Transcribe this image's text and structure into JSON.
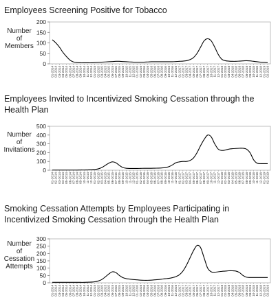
{
  "chart_data": [
    {
      "type": "line",
      "title": "Employees Screening Positive for Tobacco",
      "ylabel_lines": [
        "Number",
        "of",
        "Members"
      ],
      "ylim": [
        0,
        200
      ],
      "yticks": [
        0,
        50,
        100,
        150,
        200
      ],
      "x": [
        "01-2014",
        "02-2014",
        "03-2014",
        "04-2014",
        "05-2014",
        "06-2014",
        "07-2014",
        "08-2014",
        "09-2014",
        "10-2014",
        "11-2014",
        "12-2014",
        "01-2015",
        "02-2015",
        "03-2015",
        "04-2015",
        "05-2015",
        "06-2015",
        "07-2015",
        "08-2015",
        "09-2015",
        "10-2015",
        "11-2015",
        "12-2015",
        "01-2016",
        "02-2016",
        "03-2016",
        "04-2016",
        "05-2016",
        "06-2016",
        "07-2016",
        "08-2016",
        "09-2016",
        "10-2016",
        "11-2016",
        "12-2016",
        "01-2017",
        "02-2017",
        "03-2017",
        "04-2017",
        "05-2017",
        "06-2017",
        "07-2017",
        "08-2017",
        "09-2017",
        "10-2017",
        "11-2017",
        "12-2017",
        "01-2018",
        "02-2018",
        "03-2018",
        "04-2018",
        "05-2018",
        "06-2018",
        "07-2018",
        "08-2018",
        "09-2018",
        "10-2018",
        "11-2018",
        "12-2018",
        "01-2019",
        "02-2019"
      ],
      "series": [
        {
          "values": [
            115,
            100,
            80,
            55,
            35,
            18,
            9,
            6,
            5,
            5,
            5,
            5,
            6,
            7,
            8,
            9,
            10,
            11,
            12,
            12,
            11,
            10,
            9,
            8,
            8,
            8,
            8,
            9,
            10,
            10,
            10,
            10,
            10,
            10,
            10,
            11,
            12,
            13,
            15,
            20,
            30,
            50,
            80,
            110,
            120,
            110,
            80,
            45,
            22,
            15,
            13,
            12,
            12,
            13,
            14,
            15,
            14,
            12,
            10,
            8,
            7,
            6
          ]
        }
      ]
    },
    {
      "type": "line",
      "title": "Employees Invited to Incentivized Smoking Cessation through the Health Plan",
      "ylabel_lines": [
        "Number",
        "of",
        "Invitations"
      ],
      "ylim": [
        0,
        500
      ],
      "yticks": [
        0,
        100,
        200,
        300,
        400,
        500
      ],
      "x": [
        "01-2014",
        "02-2014",
        "03-2014",
        "04-2014",
        "05-2014",
        "06-2014",
        "07-2014",
        "08-2014",
        "09-2014",
        "10-2014",
        "11-2014",
        "12-2014",
        "01-2015",
        "02-2015",
        "03-2015",
        "04-2015",
        "05-2015",
        "06-2015",
        "07-2015",
        "08-2015",
        "09-2015",
        "10-2015",
        "11-2015",
        "12-2015",
        "01-2016",
        "02-2016",
        "03-2016",
        "04-2016",
        "05-2016",
        "06-2016",
        "07-2016",
        "08-2016",
        "09-2016",
        "10-2016",
        "11-2016",
        "12-2016",
        "01-2017",
        "02-2017",
        "03-2017",
        "04-2017",
        "05-2017",
        "06-2017",
        "07-2017",
        "08-2017",
        "09-2017",
        "10-2017",
        "11-2017",
        "12-2017",
        "01-2018",
        "02-2018",
        "03-2018",
        "04-2018",
        "05-2018",
        "06-2018",
        "07-2018",
        "08-2018",
        "09-2018",
        "10-2018",
        "11-2018",
        "12-2018",
        "01-2019",
        "02-2019"
      ],
      "series": [
        {
          "values": [
            2,
            2,
            2,
            2,
            2,
            2,
            2,
            2,
            3,
            3,
            4,
            5,
            8,
            15,
            30,
            55,
            80,
            95,
            85,
            55,
            30,
            22,
            20,
            20,
            20,
            21,
            22,
            22,
            22,
            23,
            24,
            26,
            30,
            40,
            60,
            85,
            95,
            100,
            100,
            110,
            140,
            200,
            280,
            350,
            400,
            380,
            300,
            240,
            225,
            230,
            240,
            245,
            248,
            250,
            250,
            240,
            200,
            120,
            80,
            75,
            75,
            75
          ]
        }
      ]
    },
    {
      "type": "line",
      "title": "Smoking Cessation Attempts by Employees Participating in Incentivized Smoking Cessation through the Health Plan",
      "ylabel_lines": [
        "Number",
        "of",
        "Cessation",
        "Attempts"
      ],
      "ylim": [
        0,
        300
      ],
      "yticks": [
        0,
        50,
        100,
        150,
        200,
        250,
        300
      ],
      "x": [
        "01-2014",
        "02-2014",
        "03-2014",
        "04-2014",
        "05-2014",
        "06-2014",
        "07-2014",
        "08-2014",
        "09-2014",
        "10-2014",
        "11-2014",
        "12-2014",
        "01-2015",
        "02-2015",
        "03-2015",
        "04-2015",
        "05-2015",
        "06-2015",
        "07-2015",
        "08-2015",
        "09-2015",
        "10-2015",
        "11-2015",
        "12-2015",
        "01-2016",
        "02-2016",
        "03-2016",
        "04-2016",
        "05-2016",
        "06-2016",
        "07-2016",
        "08-2016",
        "09-2016",
        "10-2016",
        "11-2016",
        "12-2016",
        "01-2017",
        "02-2017",
        "03-2017",
        "04-2017",
        "05-2017",
        "06-2017",
        "07-2017",
        "08-2017",
        "09-2017",
        "10-2017",
        "11-2017",
        "12-2017",
        "01-2018",
        "02-2018",
        "03-2018",
        "04-2018",
        "05-2018",
        "06-2018",
        "07-2018",
        "08-2018",
        "09-2018",
        "10-2018",
        "11-2018",
        "12-2018",
        "01-2019",
        "02-2019"
      ],
      "series": [
        {
          "values": [
            3,
            3,
            3,
            3,
            3,
            3,
            3,
            3,
            3,
            3,
            4,
            5,
            7,
            12,
            22,
            40,
            60,
            75,
            70,
            50,
            35,
            28,
            25,
            22,
            20,
            18,
            17,
            17,
            18,
            20,
            22,
            25,
            28,
            30,
            35,
            42,
            55,
            80,
            120,
            170,
            220,
            255,
            240,
            170,
            100,
            75,
            72,
            75,
            78,
            80,
            82,
            82,
            80,
            70,
            50,
            38,
            36,
            36,
            36,
            36,
            36,
            36
          ]
        }
      ]
    }
  ]
}
